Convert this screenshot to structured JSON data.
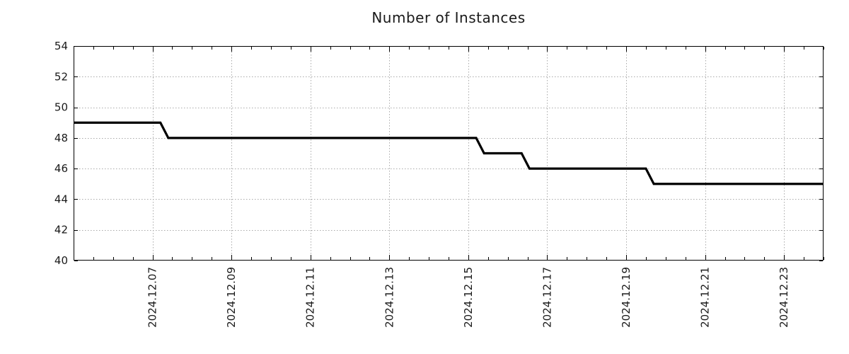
{
  "chart_data": {
    "type": "line",
    "title": "Number of Instances",
    "xlabel": "",
    "ylabel": "",
    "x_unit": "day of December 2024",
    "x_range": [
      5.0,
      24.0
    ],
    "ylim": [
      40,
      54
    ],
    "y_ticks": [
      40,
      42,
      44,
      46,
      48,
      50,
      52,
      54
    ],
    "x_major_ticks": [
      7,
      9,
      11,
      13,
      15,
      17,
      19,
      21,
      23
    ],
    "x_tick_labels": [
      "2024.12.07",
      "2024.12.09",
      "2024.12.11",
      "2024.12.13",
      "2024.12.15",
      "2024.12.17",
      "2024.12.19",
      "2024.12.21",
      "2024.12.23"
    ],
    "x_minor_tick_interval": 0.5,
    "grid": true,
    "legend_position": "none",
    "colors": {
      "line": "#000000",
      "grid": "#aaaaaa",
      "axis": "#000000",
      "text": "#1a1a1a",
      "background": "#ffffff"
    },
    "series": [
      {
        "name": "Number of Instances",
        "points": [
          [
            5.0,
            49
          ],
          [
            7.2,
            49
          ],
          [
            7.4,
            48
          ],
          [
            15.2,
            48
          ],
          [
            15.4,
            47
          ],
          [
            16.35,
            47
          ],
          [
            16.55,
            46
          ],
          [
            19.5,
            46
          ],
          [
            19.7,
            45
          ],
          [
            24.0,
            45
          ]
        ]
      }
    ],
    "step_summary": [
      {
        "value": 49,
        "until": "2024.12.07"
      },
      {
        "value": 48,
        "until": "2024.12.15"
      },
      {
        "value": 47,
        "until": "2024.12.16"
      },
      {
        "value": 46,
        "until": "2024.12.19"
      },
      {
        "value": 45,
        "until": "end"
      }
    ]
  }
}
